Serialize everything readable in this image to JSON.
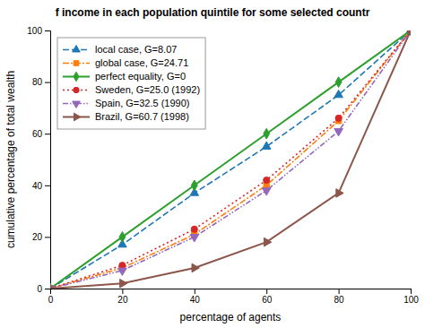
{
  "chart_data": {
    "type": "line",
    "title": "f income in each population quintile for some selected countr",
    "xlabel": "percentage of agents",
    "ylabel": "cumulative percentage of  total wealth",
    "x": [
      0,
      20,
      40,
      60,
      80,
      100
    ],
    "xlim": [
      0,
      100
    ],
    "ylim": [
      0,
      100
    ],
    "xticks": [
      0,
      20,
      40,
      60,
      80,
      100
    ],
    "yticks": [
      0,
      20,
      40,
      60,
      80,
      100
    ],
    "grid": false,
    "legend": "top-left",
    "series": [
      {
        "name": "local case, G=8.07",
        "values": [
          0,
          17,
          37,
          55,
          75,
          100
        ],
        "line_style": "dashed",
        "marker": "triangle-up"
      },
      {
        "name": "global case, G=24.71",
        "values": [
          0,
          8,
          21,
          40,
          65,
          100
        ],
        "line_style": "dashdot",
        "marker": "square"
      },
      {
        "name": "perfect equality, G=0",
        "values": [
          0,
          20,
          40,
          60,
          80,
          100
        ],
        "line_style": "solid",
        "marker": "diamond"
      },
      {
        "name": "Sweden, G=25.0 (1992)",
        "values": [
          0,
          9,
          23,
          42,
          66,
          100
        ],
        "line_style": "dotted",
        "marker": "circle"
      },
      {
        "name": "Spain, G=32.5 (1990)",
        "values": [
          0,
          7,
          20,
          38,
          61,
          100
        ],
        "line_style": "dashdotdot",
        "marker": "triangle-down"
      },
      {
        "name": "Brazil, G=60.7 (1998)",
        "values": [
          0,
          2,
          8,
          18,
          37,
          100
        ],
        "line_style": "solid",
        "marker": "triangle-right"
      }
    ]
  }
}
